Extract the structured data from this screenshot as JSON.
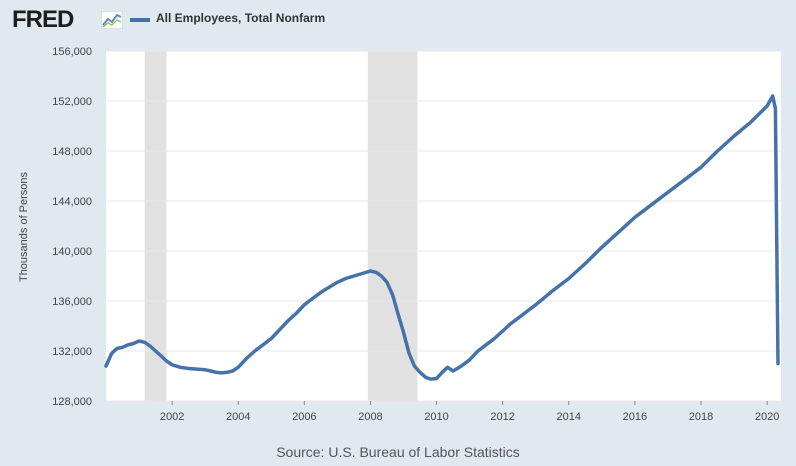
{
  "header": {
    "logo": "FRED",
    "logo_icon": "line-chart-icon",
    "legend_label": "All Employees, Total Nonfarm"
  },
  "colors": {
    "series": "#4572a7",
    "recession": "#e1e1e1",
    "background": "#e1e9f0",
    "plot_background": "#ffffff",
    "grid": "#e8e8e8"
  },
  "chart_data": {
    "type": "line",
    "title": "All Employees, Total Nonfarm",
    "xlabel": "",
    "ylabel": "Thousands of Persons",
    "xlim": [
      2000.0,
      2020.42
    ],
    "ylim": [
      128000,
      156000
    ],
    "grid": true,
    "xticks": [
      2002,
      2004,
      2006,
      2008,
      2010,
      2012,
      2014,
      2016,
      2018,
      2020
    ],
    "xtick_labels": [
      "2002",
      "2004",
      "2006",
      "2008",
      "2010",
      "2012",
      "2014",
      "2016",
      "2018",
      "2020"
    ],
    "yticks": [
      128000,
      132000,
      136000,
      140000,
      144000,
      148000,
      152000,
      156000
    ],
    "ytick_labels": [
      "128,000",
      "132,000",
      "136,000",
      "140,000",
      "144,000",
      "148,000",
      "152,000",
      "156,000"
    ],
    "recessions": [
      [
        2001.17,
        2001.83
      ],
      [
        2007.92,
        2009.42
      ]
    ],
    "series": [
      {
        "name": "All Employees, Total Nonfarm",
        "x": [
          2000.0,
          2000.17,
          2000.33,
          2000.5,
          2000.67,
          2000.83,
          2001.0,
          2001.17,
          2001.33,
          2001.5,
          2001.67,
          2001.83,
          2002.0,
          2002.25,
          2002.5,
          2002.75,
          2003.0,
          2003.17,
          2003.33,
          2003.5,
          2003.67,
          2003.83,
          2004.0,
          2004.25,
          2004.5,
          2004.75,
          2005.0,
          2005.25,
          2005.5,
          2005.75,
          2006.0,
          2006.25,
          2006.5,
          2006.75,
          2007.0,
          2007.25,
          2007.5,
          2007.75,
          2008.0,
          2008.17,
          2008.33,
          2008.5,
          2008.67,
          2008.83,
          2009.0,
          2009.17,
          2009.33,
          2009.5,
          2009.67,
          2009.83,
          2010.0,
          2010.17,
          2010.33,
          2010.5,
          2010.75,
          2011.0,
          2011.25,
          2011.5,
          2011.75,
          2012.0,
          2012.25,
          2012.5,
          2012.75,
          2013.0,
          2013.5,
          2014.0,
          2014.5,
          2015.0,
          2015.5,
          2016.0,
          2016.5,
          2017.0,
          2017.5,
          2018.0,
          2018.5,
          2019.0,
          2019.5,
          2020.0,
          2020.17,
          2020.25,
          2020.33
        ],
        "values": [
          130800,
          131800,
          132200,
          132300,
          132500,
          132600,
          132800,
          132700,
          132400,
          132000,
          131600,
          131200,
          130900,
          130700,
          130600,
          130550,
          130500,
          130400,
          130300,
          130250,
          130300,
          130400,
          130700,
          131400,
          132000,
          132500,
          133000,
          133700,
          134400,
          135000,
          135700,
          136200,
          136700,
          137100,
          137500,
          137800,
          138000,
          138200,
          138400,
          138300,
          138000,
          137500,
          136500,
          135000,
          133500,
          131800,
          130800,
          130300,
          129900,
          129750,
          129800,
          130300,
          130700,
          130400,
          130800,
          131300,
          132000,
          132500,
          133000,
          133600,
          134200,
          134700,
          135200,
          135700,
          136800,
          137800,
          139000,
          140300,
          141500,
          142700,
          143700,
          144700,
          145700,
          146700,
          148000,
          149200,
          150300,
          151600,
          152400,
          151400,
          131000
        ]
      }
    ]
  },
  "footer": {
    "source": "Source: U.S. Bureau of Labor Statistics"
  }
}
